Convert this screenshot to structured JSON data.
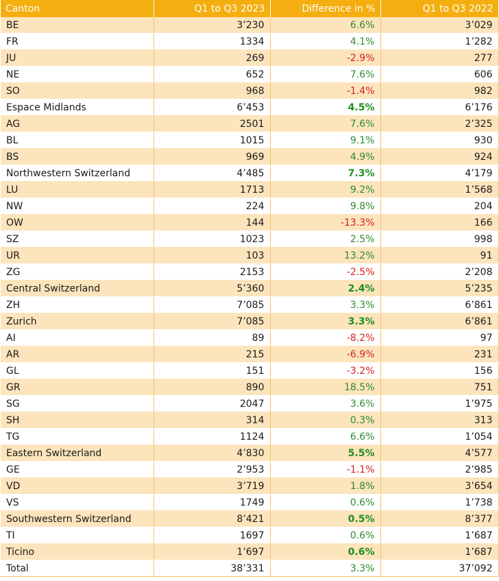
{
  "chart_data": {
    "type": "table",
    "columns": [
      "Canton",
      "Q1 to Q3 2023",
      "Difference in %",
      "Q1 to Q3 2022"
    ],
    "rows": [
      {
        "canton": "BE",
        "y2023": "3’230",
        "diff": "6.6%",
        "y2022": "3’029"
      },
      {
        "canton": "FR",
        "y2023": "1334",
        "diff": "4.1%",
        "y2022": "1’282"
      },
      {
        "canton": "JU",
        "y2023": "269",
        "diff": "-2.9%",
        "y2022": "277"
      },
      {
        "canton": "NE",
        "y2023": "652",
        "diff": "7.6%",
        "y2022": "606"
      },
      {
        "canton": "SO",
        "y2023": "968",
        "diff": "-1.4%",
        "y2022": "982"
      },
      {
        "canton": "Espace Midlands",
        "y2023": "6’453",
        "diff": "4.5%",
        "y2022": "6’176"
      },
      {
        "canton": "AG",
        "y2023": "2501",
        "diff": "7.6%",
        "y2022": "2’325"
      },
      {
        "canton": "BL",
        "y2023": "1015",
        "diff": "9.1%",
        "y2022": "930"
      },
      {
        "canton": "BS",
        "y2023": "969",
        "diff": "4.9%",
        "y2022": "924"
      },
      {
        "canton": "Northwestern Switzerland",
        "y2023": "4’485",
        "diff": "7.3%",
        "y2022": "4’179"
      },
      {
        "canton": "LU",
        "y2023": "1713",
        "diff": "9.2%",
        "y2022": "1’568"
      },
      {
        "canton": "NW",
        "y2023": "224",
        "diff": "9.8%",
        "y2022": "204"
      },
      {
        "canton": "OW",
        "y2023": "144",
        "diff": "-13.3%",
        "y2022": "166"
      },
      {
        "canton": "SZ",
        "y2023": "1023",
        "diff": "2.5%",
        "y2022": "998"
      },
      {
        "canton": "UR",
        "y2023": "103",
        "diff": "13.2%",
        "y2022": "91"
      },
      {
        "canton": "ZG",
        "y2023": "2153",
        "diff": "-2.5%",
        "y2022": "2’208"
      },
      {
        "canton": "Central Switzerland",
        "y2023": "5’360",
        "diff": "2.4%",
        "y2022": "5’235"
      },
      {
        "canton": "ZH",
        "y2023": "7’085",
        "diff": "3.3%",
        "y2022": "6’861"
      },
      {
        "canton": "Zurich",
        "y2023": "7’085",
        "diff": "3.3%",
        "y2022": "6’861"
      },
      {
        "canton": "AI",
        "y2023": "89",
        "diff": "-8.2%",
        "y2022": "97"
      },
      {
        "canton": "AR",
        "y2023": "215",
        "diff": "-6.9%",
        "y2022": "231"
      },
      {
        "canton": "GL",
        "y2023": "151",
        "diff": "-3.2%",
        "y2022": "156"
      },
      {
        "canton": "GR",
        "y2023": "890",
        "diff": "18.5%",
        "y2022": "751"
      },
      {
        "canton": "SG",
        "y2023": "2047",
        "diff": "3.6%",
        "y2022": "1’975"
      },
      {
        "canton": "SH",
        "y2023": "314",
        "diff": "0.3%",
        "y2022": "313"
      },
      {
        "canton": "TG",
        "y2023": "1124",
        "diff": "6.6%",
        "y2022": "1’054"
      },
      {
        "canton": "Eastern Switzerland",
        "y2023": "4’830",
        "diff": "5.5%",
        "y2022": "4’577"
      },
      {
        "canton": "GE",
        "y2023": "2’953",
        "diff": "-1.1%",
        "y2022": "2’985"
      },
      {
        "canton": "VD",
        "y2023": "3’719",
        "diff": "1.8%",
        "y2022": "3’654"
      },
      {
        "canton": "VS",
        "y2023": "1749",
        "diff": "0.6%",
        "y2022": "1’738"
      },
      {
        "canton": "Southwestern Switzerland",
        "y2023": "8’421",
        "diff": "0.5%",
        "y2022": "8’377"
      },
      {
        "canton": "TI",
        "y2023": "1697",
        "diff": "0.6%",
        "y2022": "1’687"
      },
      {
        "canton": "Ticino",
        "y2023": "1’697",
        "diff": "0.6%",
        "y2022": "1’687"
      },
      {
        "canton": "Total",
        "y2023": "38’331",
        "diff": "3.3%",
        "y2022": "37’092"
      }
    ]
  },
  "colors": {
    "header": "#F4AE0F",
    "band": "#FCE4BC",
    "positive": "#2E8B2E",
    "negative": "#D42020"
  }
}
